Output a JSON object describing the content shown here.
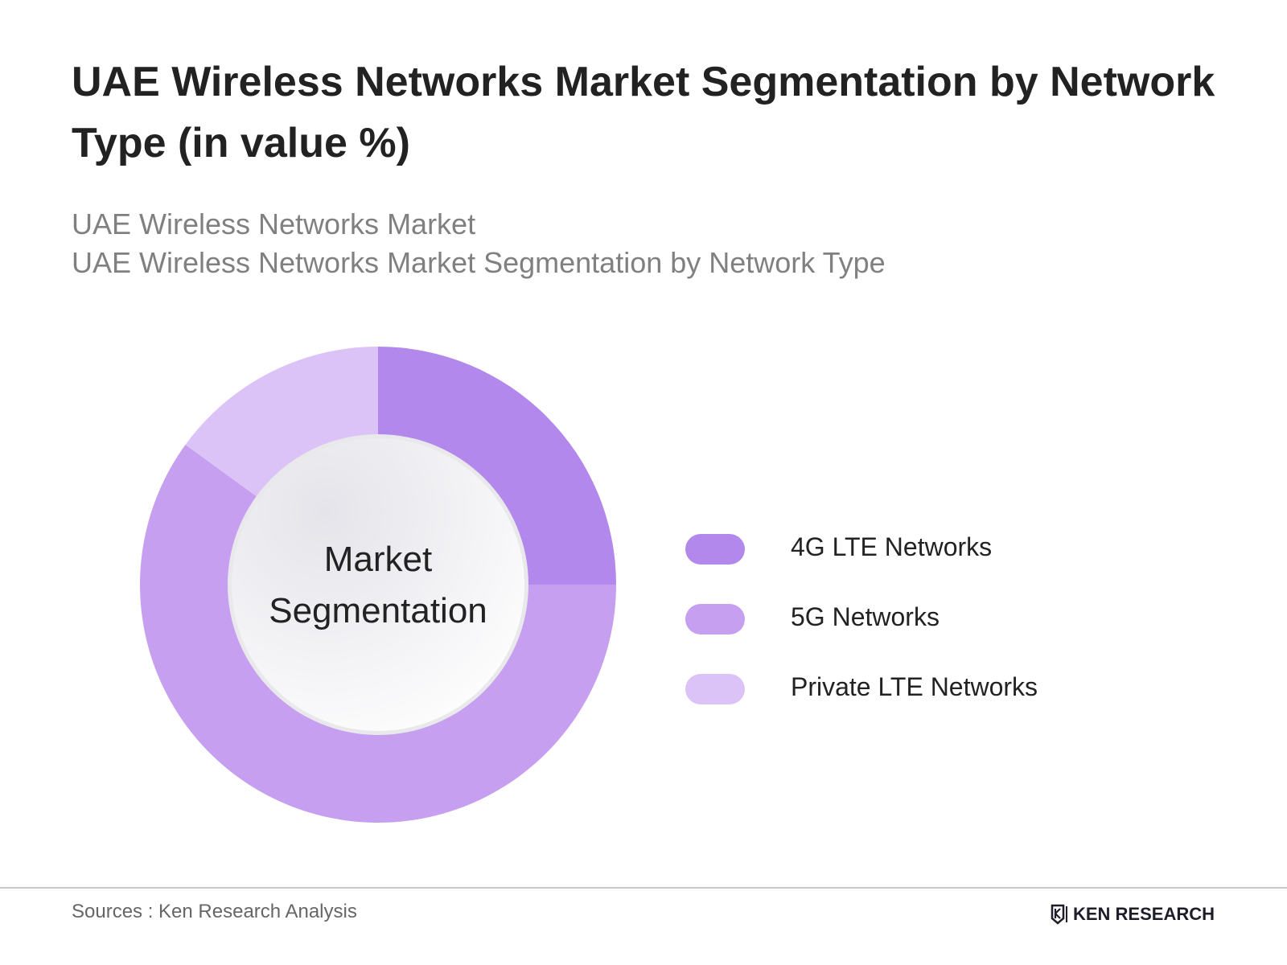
{
  "header": {
    "title": "UAE Wireless Networks Market Segmentation by Network Type (in value %)",
    "subtitle_line1": "UAE Wireless Networks Market",
    "subtitle_line2": "UAE Wireless Networks Market Segmentation by Network Type"
  },
  "chart_data": {
    "type": "pie",
    "style": "donut",
    "center_label_line1": "Market",
    "center_label_line2": "Segmentation",
    "categories": [
      "4G LTE Networks",
      "5G Networks",
      "Private LTE Networks"
    ],
    "values": [
      25,
      60,
      15
    ],
    "colors": [
      "#b388ec",
      "#c69ff0",
      "#dcc3f7"
    ],
    "legend_position": "right"
  },
  "footer": {
    "sources": "Sources : Ken Research Analysis",
    "brand": "KEN RESEARCH",
    "brand_icon": "ken-research-logo-icon"
  }
}
